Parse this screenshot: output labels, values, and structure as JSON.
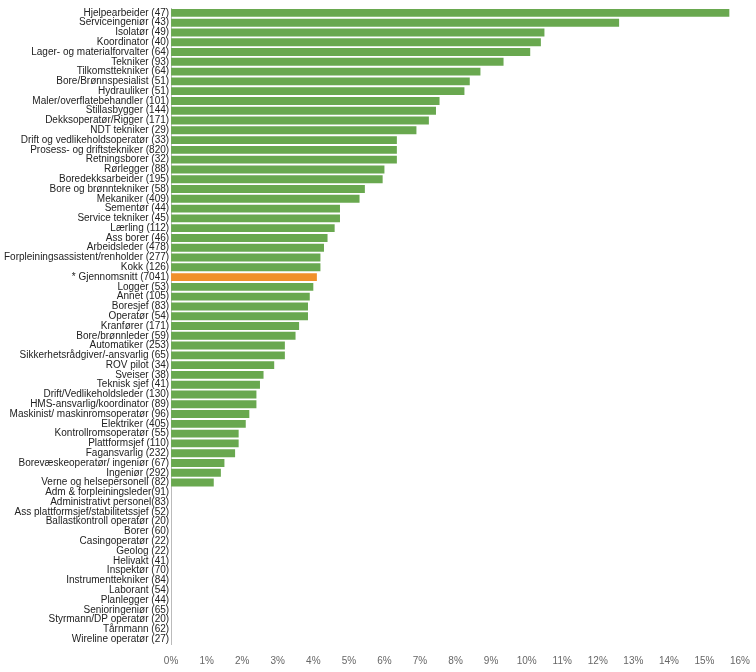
{
  "chart_data": {
    "type": "bar",
    "orientation": "horizontal",
    "grid": false,
    "categories": [
      "Hjelpearbeider (47)",
      "Serviceingeniør (43)",
      "Isolatør (49)",
      "Koordinator (40)",
      "Lager- og materialforvalter (64)",
      "Tekniker (93)",
      "Tilkomsttekniker (64)",
      "Bore/Brønnspesialist (51)",
      "Hydrauliker (51)",
      "Maler/overflatebehandler (101)",
      "Stillasbygger (144)",
      "Dekksoperatør/Rigger (171)",
      "NDT tekniker (29)",
      "Drift og vedlikeholdsoperatør (33)",
      "Prosess- og driftstekniker (820)",
      "Retningsborer (32)",
      "Rørlegger (88)",
      "Boredekksarbeider (195)",
      "Bore og brønntekniker (58)",
      "Mekaniker (409)",
      "Sementør (44)",
      "Service tekniker (45)",
      "Lærling (112)",
      "Ass borer (46)",
      "Arbeidsleder (478)",
      "Forpleiningsassistent/renholder (277)",
      "Kokk (126)",
      "* Gjennomsnitt (7041)",
      "Logger (53)",
      "Annet (105)",
      "Boresjef (83)",
      "Operatør (54)",
      "Kranfører (171)",
      "Bore/brønnleder (59)",
      "Automatiker (253)",
      "Sikkerhetsrådgiver/-ansvarlig (65)",
      "ROV pilot (34)",
      "Sveiser (38)",
      "Teknisk sjef (41)",
      "Drift/Vedlikeholdsleder (130)",
      "HMS-ansvarlig/koordinator (89)",
      "Maskinist/ maskinromsoperatør (96)",
      "Elektriker (405)",
      "Kontrollromsoperatør (55)",
      "Plattformsjef (110)",
      "Fagansvarlig (232)",
      "Borevæskeoperatør/ ingeniør (67)",
      "Ingeniør (292)",
      "Verne og helsepersonell (82)",
      "Adm & forpleiningsleder(91)",
      "Administrativt personel(83)",
      "Ass plattformsjef/stabilitetssjef (52)",
      "Ballastkontroll operatør (20)",
      "Borer (60)",
      "Casingoperatør (22)",
      "Geolog (22)",
      "Helivakt (41)",
      "Inspektør (70)",
      "Instrumenttekniker (84)",
      "Laborant (54)",
      "Planlegger (44)",
      "Senioringeniør (65)",
      "Styrmann/DP operatør (20)",
      "Tårnmann (62)",
      "Wireline operatør (27)"
    ],
    "values": [
      15.7,
      12.6,
      10.5,
      10.4,
      10.1,
      9.35,
      8.7,
      8.4,
      8.25,
      7.55,
      7.45,
      7.25,
      6.9,
      6.35,
      6.35,
      6.35,
      6.0,
      5.95,
      5.45,
      5.3,
      4.75,
      4.75,
      4.6,
      4.4,
      4.3,
      4.2,
      4.2,
      4.1,
      4.0,
      3.9,
      3.85,
      3.85,
      3.6,
      3.5,
      3.2,
      3.2,
      2.9,
      2.6,
      2.5,
      2.4,
      2.4,
      2.2,
      2.1,
      1.9,
      1.9,
      1.8,
      1.5,
      1.4,
      1.2,
      0,
      0,
      0,
      0,
      0,
      0,
      0,
      0,
      0,
      0,
      0,
      0,
      0,
      0,
      0,
      0
    ],
    "colors": [
      "#69a84f",
      "#69a84f",
      "#69a84f",
      "#69a84f",
      "#69a84f",
      "#69a84f",
      "#69a84f",
      "#69a84f",
      "#69a84f",
      "#69a84f",
      "#69a84f",
      "#69a84f",
      "#69a84f",
      "#69a84f",
      "#69a84f",
      "#69a84f",
      "#69a84f",
      "#69a84f",
      "#69a84f",
      "#69a84f",
      "#69a84f",
      "#69a84f",
      "#69a84f",
      "#69a84f",
      "#69a84f",
      "#69a84f",
      "#69a84f",
      "#f0902a",
      "#69a84f",
      "#69a84f",
      "#69a84f",
      "#69a84f",
      "#69a84f",
      "#69a84f",
      "#69a84f",
      "#69a84f",
      "#69a84f",
      "#69a84f",
      "#69a84f",
      "#69a84f",
      "#69a84f",
      "#69a84f",
      "#69a84f",
      "#69a84f",
      "#69a84f",
      "#69a84f",
      "#69a84f",
      "#69a84f",
      "#69a84f",
      "#69a84f",
      "#69a84f",
      "#69a84f",
      "#69a84f",
      "#69a84f",
      "#69a84f",
      "#69a84f",
      "#69a84f",
      "#69a84f",
      "#69a84f",
      "#69a84f",
      "#69a84f",
      "#69a84f",
      "#69a84f",
      "#69a84f",
      "#69a84f"
    ],
    "xlim": [
      0,
      16
    ],
    "xticks": [
      {
        "value": 0,
        "label": "0%"
      },
      {
        "value": 1,
        "label": "1%"
      },
      {
        "value": 2,
        "label": "2%"
      },
      {
        "value": 3,
        "label": "3%"
      },
      {
        "value": 4,
        "label": "4%"
      },
      {
        "value": 5,
        "label": "5%"
      },
      {
        "value": 6,
        "label": "6%"
      },
      {
        "value": 7,
        "label": "7%"
      },
      {
        "value": 8,
        "label": "8%"
      },
      {
        "value": 9,
        "label": "9%"
      },
      {
        "value": 10,
        "label": "10%"
      },
      {
        "value": 11,
        "label": "11%"
      },
      {
        "value": 12,
        "label": "12%"
      },
      {
        "value": 13,
        "label": "13%"
      },
      {
        "value": 14,
        "label": "14%"
      },
      {
        "value": 15,
        "label": "15%"
      },
      {
        "value": 16,
        "label": "16%"
      }
    ]
  }
}
